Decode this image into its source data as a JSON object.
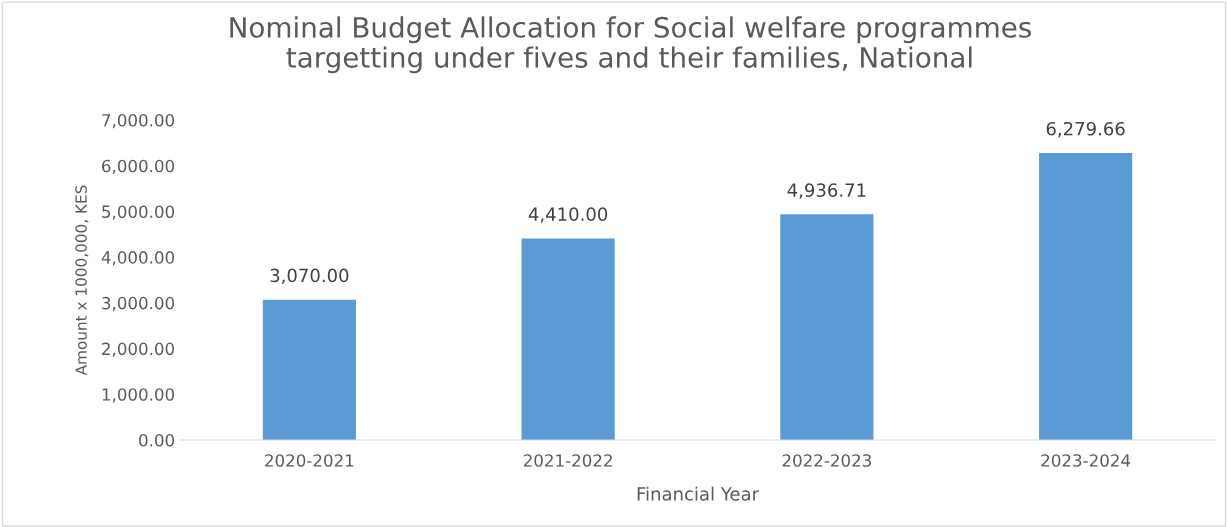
{
  "chart_data": {
    "type": "bar",
    "title": "Nominal Budget Allocation for Social welfare programmes\ntargetting under fives and their families, National",
    "xlabel": "Financial Year",
    "ylabel": "Amount x 1000,000, KES",
    "categories": [
      "2020-2021",
      "2021-2022",
      "2022-2023",
      "2023-2024"
    ],
    "values": [
      3070.0,
      4410.0,
      4936.71,
      6279.66
    ],
    "color": "#5b9bd5",
    "ylim": [
      0,
      7000
    ],
    "yticks": [
      {
        "value": 0,
        "label": "0.00"
      },
      {
        "value": 1000,
        "label": "1,000.00"
      },
      {
        "value": 2000,
        "label": "2,000.00"
      },
      {
        "value": 3000,
        "label": "3,000.00"
      },
      {
        "value": 4000,
        "label": "4,000.00"
      },
      {
        "value": 5000,
        "label": "5,000.00"
      },
      {
        "value": 6000,
        "label": "6,000.00"
      },
      {
        "value": 7000,
        "label": "7,000.00"
      }
    ],
    "value_labels": [
      "3,070.00",
      "4,410.00",
      "4,936.71",
      "6,279.66"
    ],
    "grid": false,
    "legend": false
  }
}
